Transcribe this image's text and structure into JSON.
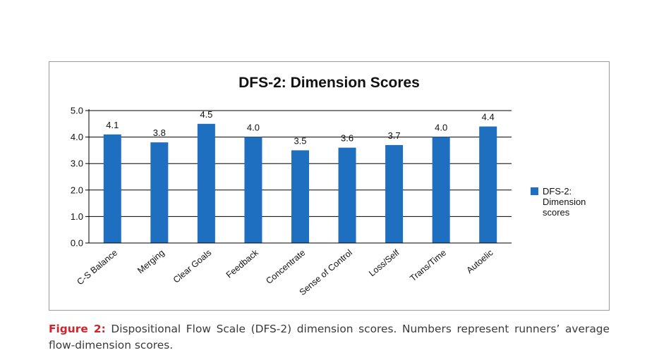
{
  "chart_data": {
    "type": "bar",
    "title": "DFS-2: Dimension Scores",
    "categories": [
      "C-S Balance",
      "Merging",
      "Clear Goals",
      "Feedback",
      "Concentrate",
      "Sense of Control",
      "Loss/Self",
      "Trans/Time",
      "Autoelic"
    ],
    "series": [
      {
        "name": "DFS-2: Dimension scores",
        "values": [
          4.1,
          3.8,
          4.5,
          4.0,
          3.5,
          3.6,
          3.7,
          4.0,
          4.4
        ],
        "color": "#1f6fc0"
      }
    ],
    "value_labels": [
      "4.1",
      "3.8",
      "4.5",
      "4.0",
      "3.5",
      "3.6",
      "3.7",
      "4.0",
      "4.4"
    ],
    "y_ticks": [
      0,
      1,
      2,
      3,
      4,
      5
    ],
    "y_tick_labels": [
      "0.0",
      "1.0",
      "2.0",
      "3.0",
      "4.0",
      "5.0"
    ],
    "ylim": [
      0,
      5
    ],
    "xlabel": "",
    "ylabel": "",
    "grid": true,
    "legend": {
      "position": "right",
      "lines": [
        "DFS-2:",
        "Dimension",
        "scores"
      ]
    }
  },
  "caption": {
    "label": "Figure 2:",
    "text": " Dispositional Flow Scale (DFS-2) dimension scores. Numbers represent runners’ average flow-dimension scores."
  }
}
